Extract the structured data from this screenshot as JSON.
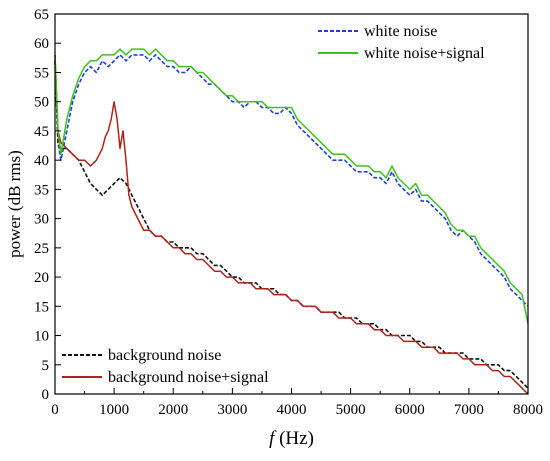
{
  "chart_data": {
    "type": "line",
    "title": "",
    "xlabel_symbol": "f",
    "xlabel_unit": "(Hz)",
    "ylabel": "power (dB rms)",
    "xlim": [
      0,
      8000
    ],
    "ylim": [
      0,
      65
    ],
    "x_ticks": [
      0,
      1000,
      2000,
      3000,
      4000,
      5000,
      6000,
      7000,
      8000
    ],
    "y_ticks": [
      0,
      5,
      10,
      15,
      20,
      25,
      30,
      35,
      40,
      45,
      50,
      55,
      60,
      65
    ],
    "grid": false,
    "legends": [
      {
        "placement": "top-right",
        "entries": [
          {
            "name": "white noise",
            "color": "#1f3fd8",
            "dash": "dashed"
          },
          {
            "name": "white noise+signal",
            "color": "#3cc41a",
            "dash": "solid"
          }
        ]
      },
      {
        "placement": "bottom-left",
        "entries": [
          {
            "name": "background noise",
            "color": "#111111",
            "dash": "dashed"
          },
          {
            "name": "background noise+signal",
            "color": "#b02318",
            "dash": "solid"
          }
        ]
      }
    ],
    "series": [
      {
        "name": "white noise",
        "color": "#1f3fd8",
        "dash": "dashed",
        "x": [
          0,
          50,
          100,
          200,
          300,
          400,
          500,
          600,
          700,
          800,
          900,
          1000,
          1100,
          1200,
          1300,
          1400,
          1500,
          1600,
          1700,
          1800,
          1900,
          2000,
          2100,
          2200,
          2300,
          2400,
          2500,
          2600,
          2700,
          2800,
          2900,
          3000,
          3100,
          3200,
          3300,
          3400,
          3500,
          3600,
          3700,
          3800,
          3900,
          4000,
          4100,
          4200,
          4300,
          4400,
          4500,
          4600,
          4700,
          4800,
          4900,
          5000,
          5100,
          5200,
          5300,
          5400,
          5500,
          5600,
          5700,
          5800,
          5900,
          6000,
          6100,
          6200,
          6300,
          6400,
          6500,
          6600,
          6700,
          6800,
          6900,
          7000,
          7100,
          7200,
          7300,
          7400,
          7500,
          7600,
          7700,
          7800,
          7900,
          8000
        ],
        "y": [
          57,
          43,
          40,
          45,
          50,
          53,
          55,
          56,
          55,
          57,
          56,
          57,
          58,
          57,
          58,
          58,
          58,
          57,
          58,
          57,
          56,
          56,
          55,
          55,
          56,
          55,
          54,
          53,
          53,
          52,
          51,
          50,
          50,
          49,
          50,
          50,
          49,
          49,
          48,
          48,
          49,
          48,
          46,
          45,
          44,
          43,
          42,
          41,
          40,
          40,
          40,
          39,
          38,
          38,
          38,
          37,
          37,
          36,
          38,
          36,
          35,
          34,
          35,
          33,
          33,
          32,
          31,
          30,
          28,
          27,
          28,
          27,
          26,
          24,
          23,
          22,
          21,
          20,
          18,
          17,
          16,
          15
        ]
      },
      {
        "name": "white noise+signal",
        "color": "#3cc41a",
        "dash": "solid",
        "x": [
          0,
          50,
          100,
          200,
          300,
          400,
          500,
          600,
          700,
          800,
          900,
          1000,
          1100,
          1200,
          1300,
          1400,
          1500,
          1600,
          1700,
          1800,
          1900,
          2000,
          2100,
          2200,
          2300,
          2400,
          2500,
          2600,
          2700,
          2800,
          2900,
          3000,
          3100,
          3200,
          3300,
          3400,
          3500,
          3600,
          3700,
          3800,
          3900,
          4000,
          4100,
          4200,
          4300,
          4400,
          4500,
          4600,
          4700,
          4800,
          4900,
          5000,
          5100,
          5200,
          5300,
          5400,
          5500,
          5600,
          5700,
          5800,
          5900,
          6000,
          6100,
          6200,
          6300,
          6400,
          6500,
          6600,
          6700,
          6800,
          6900,
          7000,
          7100,
          7200,
          7300,
          7400,
          7500,
          7600,
          7700,
          7800,
          7900,
          8000
        ],
        "y": [
          58,
          45,
          41,
          47,
          51,
          54,
          56,
          57,
          57,
          58,
          58,
          58,
          59,
          58,
          59,
          59,
          59,
          58,
          59,
          58,
          57,
          57,
          56,
          56,
          56,
          55,
          55,
          54,
          53,
          52,
          51,
          51,
          50,
          50,
          50,
          50,
          50,
          49,
          49,
          49,
          49,
          49,
          47,
          46,
          45,
          44,
          43,
          42,
          41,
          41,
          41,
          40,
          39,
          39,
          39,
          38,
          38,
          37,
          39,
          37,
          36,
          35,
          36,
          34,
          34,
          33,
          32,
          31,
          29,
          28,
          28,
          27,
          27,
          25,
          24,
          23,
          22,
          21,
          19,
          18,
          17,
          12
        ]
      },
      {
        "name": "background noise",
        "color": "#111111",
        "dash": "dashed",
        "x": [
          0,
          50,
          100,
          200,
          300,
          400,
          500,
          600,
          700,
          800,
          900,
          1000,
          1100,
          1200,
          1300,
          1400,
          1500,
          1600,
          1700,
          1800,
          1900,
          2000,
          2100,
          2200,
          2300,
          2400,
          2500,
          2600,
          2700,
          2800,
          2900,
          3000,
          3100,
          3200,
          3300,
          3400,
          3500,
          3600,
          3700,
          3800,
          3900,
          4000,
          4100,
          4200,
          4300,
          4400,
          4500,
          4600,
          4700,
          4800,
          4900,
          5000,
          5100,
          5200,
          5300,
          5400,
          5500,
          5600,
          5700,
          5800,
          5900,
          6000,
          6100,
          6200,
          6300,
          6400,
          6500,
          6600,
          6700,
          6800,
          6900,
          7000,
          7100,
          7200,
          7300,
          7400,
          7500,
          7600,
          7700,
          7800,
          7900,
          8000
        ],
        "y": [
          57,
          43,
          42,
          42,
          41,
          40,
          38,
          36,
          35,
          34,
          35,
          36,
          37,
          36,
          34,
          32,
          30,
          28,
          27,
          27,
          26,
          26,
          25,
          25,
          25,
          24,
          24,
          23,
          22,
          22,
          21,
          20,
          20,
          19,
          19,
          19,
          18,
          18,
          18,
          17,
          17,
          16,
          16,
          15,
          15,
          15,
          14,
          14,
          14,
          14,
          13,
          13,
          13,
          12,
          12,
          12,
          11,
          11,
          10,
          10,
          10,
          10,
          9,
          9,
          8,
          8,
          8,
          7,
          7,
          7,
          7,
          6,
          6,
          6,
          5,
          5,
          5,
          4,
          4,
          3,
          2,
          1
        ]
      },
      {
        "name": "background noise+signal",
        "color": "#b02318",
        "dash": "solid",
        "x": [
          0,
          50,
          100,
          200,
          300,
          400,
          500,
          600,
          700,
          800,
          850,
          900,
          950,
          1000,
          1050,
          1100,
          1150,
          1200,
          1250,
          1300,
          1400,
          1500,
          1600,
          1700,
          1800,
          1900,
          2000,
          2100,
          2200,
          2300,
          2400,
          2500,
          2600,
          2700,
          2800,
          2900,
          3000,
          3100,
          3200,
          3300,
          3400,
          3500,
          3600,
          3700,
          3800,
          3900,
          4000,
          4100,
          4200,
          4300,
          4400,
          4500,
          4600,
          4700,
          4800,
          4900,
          5000,
          5100,
          5200,
          5300,
          5400,
          5500,
          5600,
          5700,
          5800,
          5900,
          6000,
          6100,
          6200,
          6300,
          6400,
          6500,
          6600,
          6700,
          6800,
          6900,
          7000,
          7100,
          7200,
          7300,
          7400,
          7500,
          7600,
          7700,
          7800,
          7900,
          8000
        ],
        "y": [
          58,
          45,
          43,
          42,
          41,
          40,
          40,
          39,
          40,
          42,
          44,
          45,
          47,
          50,
          47,
          42,
          45,
          40,
          34,
          32,
          30,
          28,
          28,
          27,
          27,
          26,
          25,
          25,
          24,
          24,
          23,
          23,
          22,
          21,
          21,
          20,
          20,
          19,
          19,
          19,
          18,
          18,
          18,
          17,
          17,
          17,
          16,
          16,
          15,
          15,
          15,
          14,
          14,
          14,
          13,
          13,
          13,
          12,
          12,
          12,
          11,
          11,
          10,
          10,
          10,
          9,
          9,
          9,
          8,
          8,
          8,
          7,
          7,
          7,
          7,
          6,
          6,
          5,
          5,
          5,
          4,
          4,
          3,
          3,
          2,
          1,
          0
        ]
      }
    ]
  }
}
